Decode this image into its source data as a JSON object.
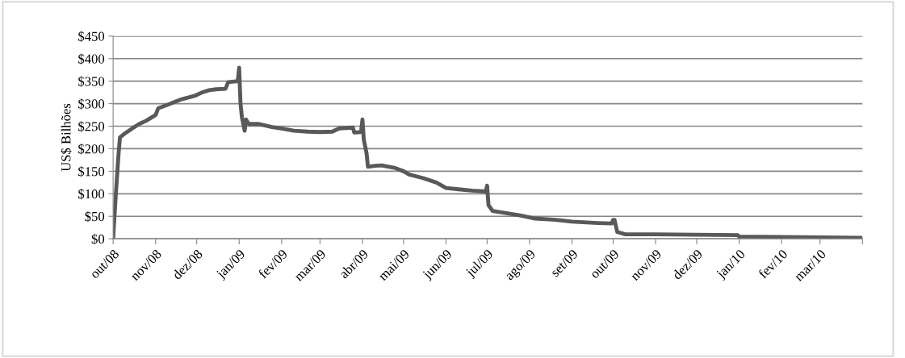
{
  "chart_data": {
    "type": "line",
    "ylabel": "US$ Bilhões",
    "x": [
      "2008-10-01",
      "2008-10-03",
      "2008-10-05",
      "2008-10-06",
      "2008-10-10",
      "2008-10-15",
      "2008-10-20",
      "2008-10-25",
      "2008-11-01",
      "2008-11-03",
      "2008-11-10",
      "2008-11-20",
      "2008-11-30",
      "2008-12-05",
      "2008-12-10",
      "2008-12-15",
      "2008-12-22",
      "2008-12-24",
      "2008-12-31",
      "2009-01-01",
      "2009-01-02",
      "2009-01-03",
      "2009-01-05",
      "2009-01-06",
      "2009-01-08",
      "2009-01-15",
      "2009-01-25",
      "2009-02-01",
      "2009-02-10",
      "2009-02-20",
      "2009-03-01",
      "2009-03-10",
      "2009-03-15",
      "2009-03-25",
      "2009-03-26",
      "2009-03-31",
      "2009-04-01",
      "2009-04-02",
      "2009-04-04",
      "2009-04-05",
      "2009-04-10",
      "2009-04-15",
      "2009-04-25",
      "2009-05-01",
      "2009-05-05",
      "2009-05-15",
      "2009-05-25",
      "2009-06-01",
      "2009-06-10",
      "2009-06-20",
      "2009-06-30",
      "2009-07-01",
      "2009-07-02",
      "2009-07-05",
      "2009-07-15",
      "2009-07-25",
      "2009-08-05",
      "2009-08-20",
      "2009-09-01",
      "2009-09-20",
      "2009-09-30",
      "2009-10-01",
      "2009-10-02",
      "2009-10-04",
      "2009-10-10",
      "2009-11-01",
      "2009-12-01",
      "2009-12-31",
      "2010-01-01",
      "2010-02-01",
      "2010-03-01",
      "2010-03-31"
    ],
    "series": [
      {
        "color": "#595959",
        "values": [
          0,
          100,
          190,
          225,
          235,
          245,
          255,
          262,
          275,
          290,
          298,
          310,
          318,
          325,
          330,
          332,
          333,
          348,
          350,
          380,
          300,
          270,
          240,
          265,
          255,
          255,
          248,
          245,
          240,
          238,
          237,
          238,
          245,
          247,
          236,
          237,
          265,
          220,
          190,
          160,
          162,
          163,
          157,
          150,
          143,
          135,
          125,
          113,
          110,
          107,
          105,
          118,
          75,
          62,
          57,
          52,
          45,
          42,
          38,
          35,
          34,
          42,
          42,
          15,
          10,
          10,
          9,
          8,
          5,
          4,
          3,
          2
        ]
      }
    ],
    "xlim": [
      "2008-10-01",
      "2010-04-01"
    ],
    "xticks": [
      {
        "value": "2008-10-01",
        "label": "out/08"
      },
      {
        "value": "2008-11-01",
        "label": "nov/08"
      },
      {
        "value": "2008-12-01",
        "label": "dez/08"
      },
      {
        "value": "2009-01-01",
        "label": "jan/09"
      },
      {
        "value": "2009-02-01",
        "label": "fev/09"
      },
      {
        "value": "2009-03-01",
        "label": "mar/09"
      },
      {
        "value": "2009-04-01",
        "label": "abr/09"
      },
      {
        "value": "2009-05-01",
        "label": "mai/09"
      },
      {
        "value": "2009-06-01",
        "label": "jun/09"
      },
      {
        "value": "2009-07-01",
        "label": "jul/09"
      },
      {
        "value": "2009-08-01",
        "label": "ago/09"
      },
      {
        "value": "2009-09-01",
        "label": "set/09"
      },
      {
        "value": "2009-10-01",
        "label": "out/09"
      },
      {
        "value": "2009-11-01",
        "label": "nov/09"
      },
      {
        "value": "2009-12-01",
        "label": "dez/09"
      },
      {
        "value": "2010-01-01",
        "label": "jan/10"
      },
      {
        "value": "2010-02-01",
        "label": "fev/10"
      },
      {
        "value": "2010-03-01",
        "label": "mar/10"
      },
      {
        "value": "2010-04-01",
        "label": null
      }
    ],
    "ylim": [
      0,
      450
    ],
    "yticks": [
      {
        "value": 0,
        "label": "$0"
      },
      {
        "value": 50,
        "label": "$50"
      },
      {
        "value": 100,
        "label": "$100"
      },
      {
        "value": 150,
        "label": "$150"
      },
      {
        "value": 200,
        "label": "$200"
      },
      {
        "value": 250,
        "label": "$250"
      },
      {
        "value": 300,
        "label": "$300"
      },
      {
        "value": 350,
        "label": "$350"
      },
      {
        "value": 400,
        "label": "$400"
      },
      {
        "value": 450,
        "label": "$450"
      }
    ],
    "grid": "y",
    "marker": "none",
    "line_style": "solid"
  }
}
